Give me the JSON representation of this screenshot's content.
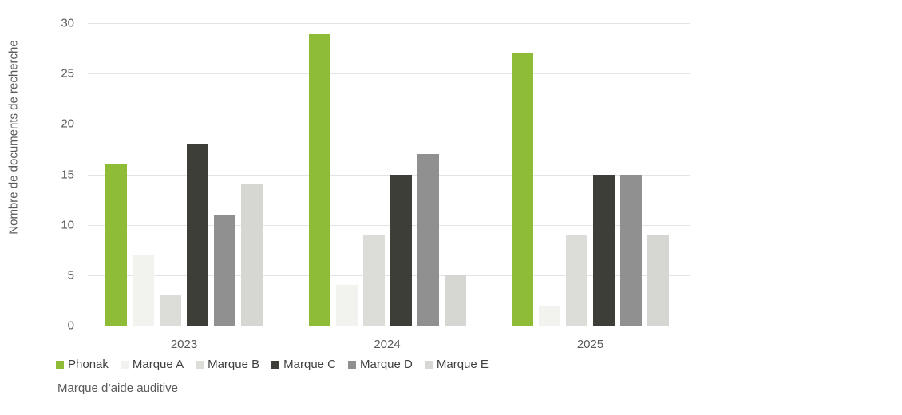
{
  "chart_data": {
    "type": "bar",
    "title": "",
    "xlabel": "Marque d’aide auditive",
    "ylabel": "Nombre de documents de recherche",
    "categories": [
      "2023",
      "2024",
      "2025"
    ],
    "series": [
      {
        "name": "Phonak",
        "color": "#8FBC36",
        "values": [
          16,
          29,
          27
        ]
      },
      {
        "name": "Marque A",
        "color": "#F2F2EF",
        "values": [
          7,
          4,
          2
        ]
      },
      {
        "name": "Marque B",
        "color": "#DCDCD8",
        "values": [
          3,
          9,
          9
        ]
      },
      {
        "name": "Marque C",
        "color": "#3E3E39",
        "values": [
          18,
          15,
          15
        ]
      },
      {
        "name": "Marque D",
        "color": "#909090",
        "values": [
          11,
          17,
          15
        ]
      },
      {
        "name": "Marque E",
        "color": "#D6D6D2",
        "values": [
          14,
          5,
          9
        ]
      }
    ],
    "ylim": [
      0,
      30
    ],
    "yticks": [
      0,
      5,
      10,
      15,
      20,
      25,
      30
    ],
    "grid": true,
    "legend_position": "bottom-left"
  }
}
